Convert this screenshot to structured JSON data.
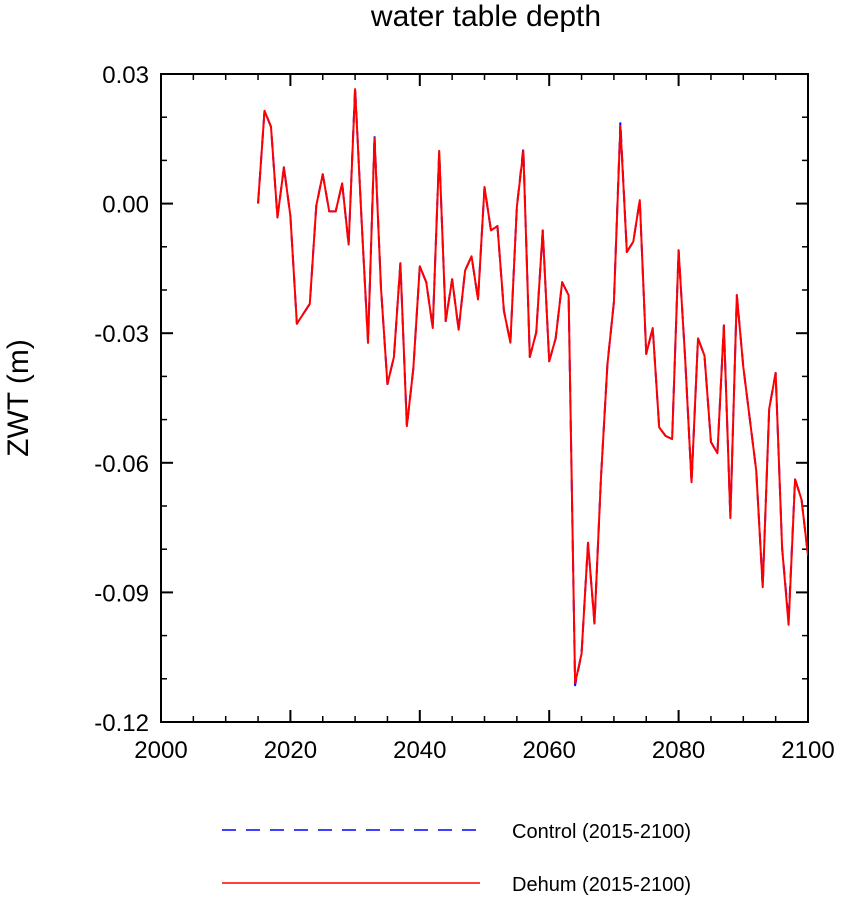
{
  "chart_data": {
    "type": "line",
    "title": "water table depth",
    "xlabel": "",
    "ylabel": "ZWT  (m)",
    "xlim": [
      2000,
      2100
    ],
    "ylim": [
      -0.12,
      0.03
    ],
    "x_ticks": [
      2000,
      2020,
      2040,
      2060,
      2080,
      2100
    ],
    "x_tick_labels": [
      "2000",
      "2020",
      "2040",
      "2060",
      "2080",
      "2100"
    ],
    "y_ticks": [
      0.03,
      0.0,
      -0.03,
      -0.06,
      -0.09,
      -0.12
    ],
    "y_tick_labels": [
      "0.03",
      "0.00",
      "-0.03",
      "-0.06",
      "-0.09",
      "-0.12"
    ],
    "grid": false,
    "legend_position": "bottom",
    "x": [
      2015,
      2016,
      2017,
      2018,
      2019,
      2020,
      2021,
      2022,
      2023,
      2024,
      2025,
      2026,
      2027,
      2028,
      2029,
      2030,
      2031,
      2032,
      2033,
      2034,
      2035,
      2036,
      2037,
      2038,
      2039,
      2040,
      2041,
      2042,
      2043,
      2044,
      2045,
      2046,
      2047,
      2048,
      2049,
      2050,
      2051,
      2052,
      2053,
      2054,
      2055,
      2056,
      2057,
      2058,
      2059,
      2060,
      2061,
      2062,
      2063,
      2064,
      2065,
      2066,
      2067,
      2068,
      2069,
      2070,
      2071,
      2072,
      2073,
      2074,
      2075,
      2076,
      2077,
      2078,
      2079,
      2080,
      2081,
      2082,
      2083,
      2084,
      2085,
      2086,
      2087,
      2088,
      2089,
      2090,
      2091,
      2092,
      2093,
      2094,
      2095,
      2096,
      2097,
      2098,
      2099,
      2100
    ],
    "series": [
      {
        "name": "Control (2015-2100)",
        "color": "#0000ff",
        "style": "dashed",
        "values": [
          0.0,
          0.0215,
          0.0178,
          -0.0032,
          0.0084,
          -0.0029,
          -0.0278,
          -0.0255,
          -0.0232,
          -0.0005,
          0.0068,
          -0.0018,
          -0.0018,
          0.0047,
          -0.0095,
          0.027,
          -0.0038,
          -0.0322,
          0.0158,
          -0.0195,
          -0.0418,
          -0.0355,
          -0.0138,
          -0.0515,
          -0.0382,
          -0.0145,
          -0.0182,
          -0.0288,
          0.0122,
          -0.0272,
          -0.0175,
          -0.0292,
          -0.0155,
          -0.0122,
          -0.0222,
          0.0038,
          -0.0062,
          -0.0052,
          -0.0248,
          -0.0322,
          -0.0008,
          0.0128,
          -0.0355,
          -0.0298,
          -0.0062,
          -0.0365,
          -0.0312,
          -0.0182,
          -0.0212,
          -0.1115,
          -0.1042,
          -0.0785,
          -0.0972,
          -0.0635,
          -0.0372,
          -0.0228,
          0.0188,
          -0.0112,
          -0.0088,
          0.0008,
          -0.0348,
          -0.0288,
          -0.0518,
          -0.0538,
          -0.0545,
          -0.0108,
          -0.0355,
          -0.0645,
          -0.0312,
          -0.0352,
          -0.0552,
          -0.0578,
          -0.0282,
          -0.0728,
          -0.0212,
          -0.0378,
          -0.0498,
          -0.0618,
          -0.0888,
          -0.0475,
          -0.0392,
          -0.0798,
          -0.0965,
          -0.0638,
          -0.0685,
          -0.0815
        ]
      },
      {
        "name": "Dehum (2015-2100)",
        "color": "#ff0000",
        "style": "solid",
        "values": [
          0.0,
          0.0215,
          0.0178,
          -0.0032,
          0.0084,
          -0.0029,
          -0.0278,
          -0.0255,
          -0.0232,
          -0.0005,
          0.0068,
          -0.0018,
          -0.0018,
          0.0047,
          -0.0095,
          0.0265,
          -0.0038,
          -0.0322,
          0.0152,
          -0.0195,
          -0.0418,
          -0.0355,
          -0.0138,
          -0.0515,
          -0.0382,
          -0.0145,
          -0.0182,
          -0.0288,
          0.0122,
          -0.0272,
          -0.0175,
          -0.0292,
          -0.0155,
          -0.0122,
          -0.0222,
          0.0038,
          -0.0062,
          -0.0052,
          -0.0248,
          -0.0322,
          -0.0008,
          0.0122,
          -0.0355,
          -0.0298,
          -0.0062,
          -0.0365,
          -0.0312,
          -0.0182,
          -0.0212,
          -0.111,
          -0.1042,
          -0.0785,
          -0.0972,
          -0.0635,
          -0.0372,
          -0.0228,
          0.018,
          -0.0112,
          -0.0088,
          0.0008,
          -0.0348,
          -0.0288,
          -0.0518,
          -0.0538,
          -0.0545,
          -0.0108,
          -0.0355,
          -0.0645,
          -0.0312,
          -0.0352,
          -0.0552,
          -0.0578,
          -0.0282,
          -0.0728,
          -0.0212,
          -0.0378,
          -0.0498,
          -0.0618,
          -0.0888,
          -0.0475,
          -0.0392,
          -0.0798,
          -0.0975,
          -0.0638,
          -0.0685,
          -0.0815
        ]
      }
    ]
  }
}
